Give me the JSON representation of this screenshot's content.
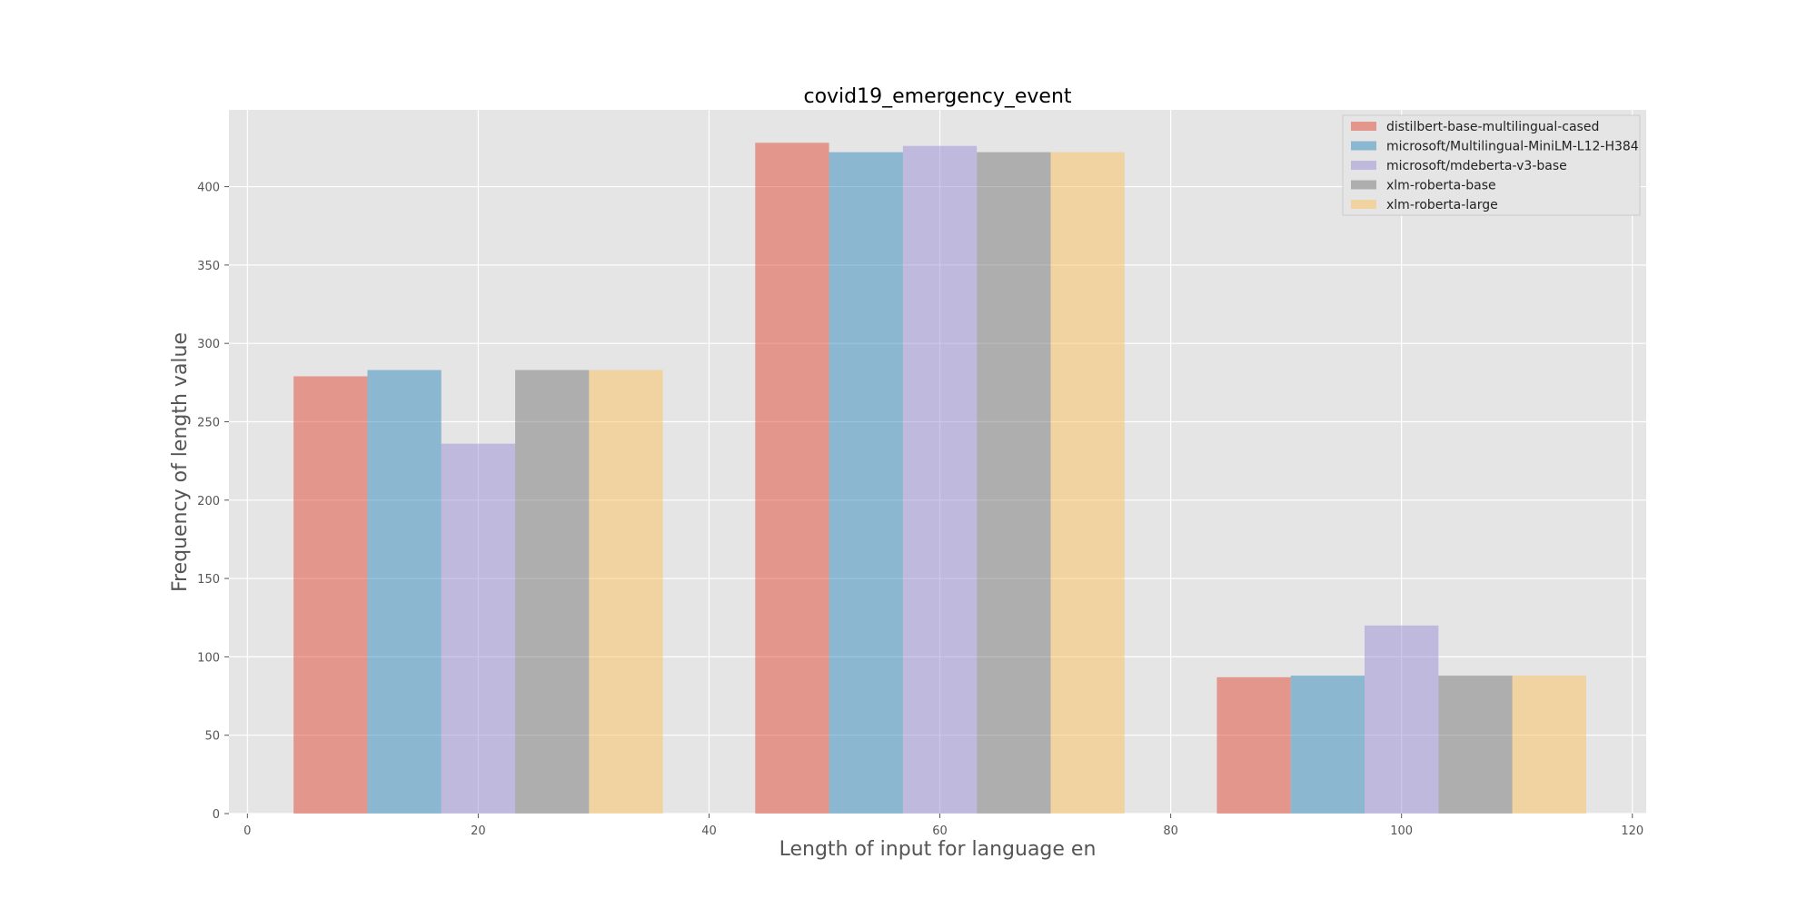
{
  "chart_data": {
    "type": "bar",
    "title": "covid19_emergency_event",
    "xlabel": "Length of input for language en",
    "ylabel": "Frequency of length value",
    "xlim": [
      -1.6,
      121.2
    ],
    "ylim": [
      0,
      449
    ],
    "x_ticks": [
      0,
      20,
      40,
      60,
      80,
      100,
      120
    ],
    "y_ticks": [
      0,
      50,
      100,
      150,
      200,
      250,
      300,
      350,
      400
    ],
    "grid": true,
    "legend_position": "top-right",
    "bar_groups": [
      {
        "start": 4,
        "end": 36
      },
      {
        "start": 44,
        "end": 76
      },
      {
        "start": 84,
        "end": 116
      }
    ],
    "series": [
      {
        "name": "distilbert-base-multilingual-cased",
        "color": "#E24A33",
        "values": [
          279,
          428,
          87
        ]
      },
      {
        "name": "microsoft/Multilingual-MiniLM-L12-H384",
        "color": "#348ABD",
        "values": [
          283,
          422,
          88
        ]
      },
      {
        "name": "microsoft/mdeberta-v3-base",
        "color": "#988ED5",
        "values": [
          236,
          426,
          120
        ]
      },
      {
        "name": "xlm-roberta-base",
        "color": "#777777",
        "values": [
          283,
          422,
          88
        ]
      },
      {
        "name": "xlm-roberta-large",
        "color": "#FBC15E",
        "values": [
          283,
          422,
          88
        ]
      }
    ]
  }
}
